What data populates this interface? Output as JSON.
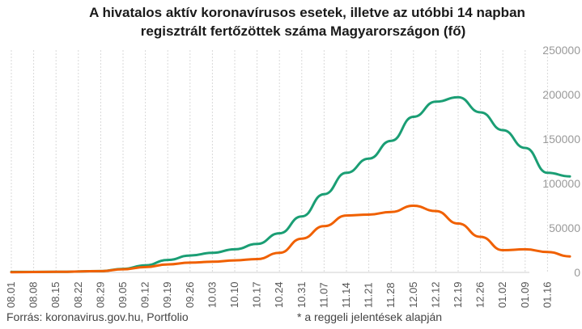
{
  "chart_data": {
    "type": "line",
    "title_lines": [
      "A hivatalos aktív koronavírusos esetek, illetve az utóbbi 14 napban",
      "regisztrált fertőzöttek száma Magyarországon (fő)"
    ],
    "source": "Forrás: koronavirus.gov.hu, Portfolio",
    "note": "* a reggeli jelentések alapján",
    "xlabel": "",
    "ylabel": "",
    "ylim": [
      0,
      250000
    ],
    "yticks": [
      0,
      50000,
      100000,
      150000,
      200000,
      250000
    ],
    "ytick_labels": [
      "0",
      "50000",
      "100000",
      "150000",
      "200000",
      "250000"
    ],
    "xticks": [
      "08.01",
      "08.08",
      "08.15",
      "08.22",
      "08.29",
      "09.05",
      "09.12",
      "09.19",
      "09.26",
      "10.03",
      "10.10",
      "10.17",
      "10.24",
      "10.31",
      "11.07",
      "11.14",
      "11.21",
      "11.28",
      "12.05",
      "12.12",
      "12.19",
      "12.26",
      "01.02",
      "01.09",
      "01.16"
    ],
    "x_start": "08.01",
    "grid": "vertical",
    "legend": "none",
    "series": [
      {
        "color": "#1a9e74",
        "points": [
          [
            "08.01",
            500
          ],
          [
            "08.15",
            600
          ],
          [
            "08.29",
            1500
          ],
          [
            "09.05",
            4000
          ],
          [
            "09.12",
            8000
          ],
          [
            "09.19",
            14000
          ],
          [
            "09.26",
            19000
          ],
          [
            "10.03",
            22000
          ],
          [
            "10.10",
            26000
          ],
          [
            "10.17",
            32000
          ],
          [
            "10.24",
            44000
          ],
          [
            "10.31",
            63000
          ],
          [
            "11.07",
            88000
          ],
          [
            "11.14",
            112000
          ],
          [
            "11.21",
            128000
          ],
          [
            "11.28",
            148000
          ],
          [
            "12.05",
            175000
          ],
          [
            "12.12",
            192000
          ],
          [
            "12.19",
            197000
          ],
          [
            "12.26",
            180000
          ],
          [
            "01.02",
            160000
          ],
          [
            "01.09",
            140000
          ],
          [
            "01.16",
            112000
          ],
          [
            "01.23",
            108000
          ]
        ]
      },
      {
        "color": "#f06000",
        "points": [
          [
            "08.01",
            300
          ],
          [
            "08.15",
            600
          ],
          [
            "08.29",
            1500
          ],
          [
            "09.05",
            3500
          ],
          [
            "09.12",
            6000
          ],
          [
            "09.19",
            9000
          ],
          [
            "09.26",
            11000
          ],
          [
            "10.03",
            12000
          ],
          [
            "10.10",
            13500
          ],
          [
            "10.17",
            15000
          ],
          [
            "10.24",
            22000
          ],
          [
            "10.31",
            38000
          ],
          [
            "11.07",
            52000
          ],
          [
            "11.14",
            64000
          ],
          [
            "11.21",
            65000
          ],
          [
            "11.28",
            68000
          ],
          [
            "12.05",
            75000
          ],
          [
            "12.12",
            69000
          ],
          [
            "12.19",
            55000
          ],
          [
            "12.26",
            40000
          ],
          [
            "01.02",
            25000
          ],
          [
            "01.09",
            26000
          ],
          [
            "01.16",
            23000
          ],
          [
            "01.23",
            18000
          ]
        ]
      }
    ]
  }
}
